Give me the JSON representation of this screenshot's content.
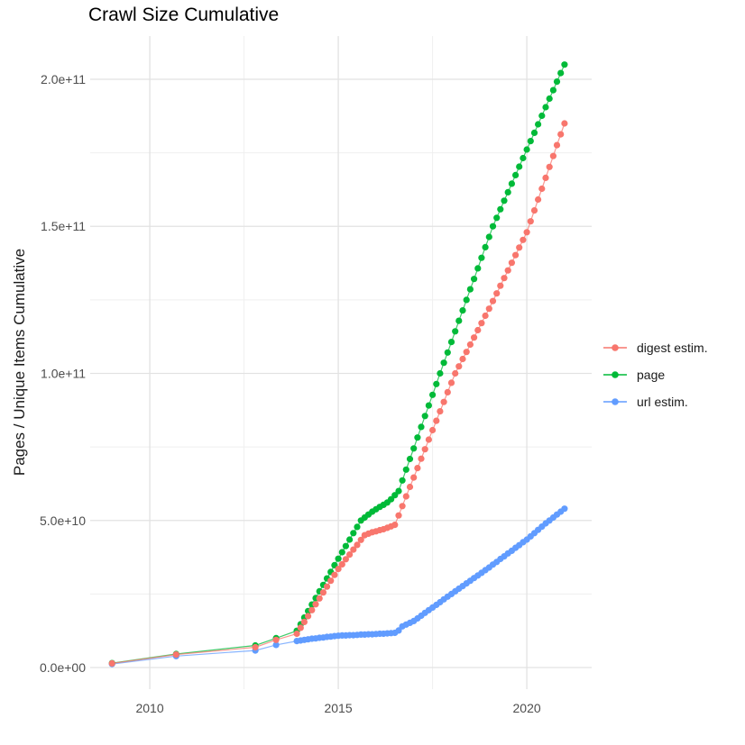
{
  "chart_data": {
    "type": "scatter",
    "title": "Crawl Size Cumulative",
    "xlabel": "",
    "ylabel": "Pages / Unique Items Cumulative",
    "value_unit": "1e9 (all series values stored in billions of items)",
    "xlim": [
      2008.42,
      2021.72
    ],
    "ylim_e9": [
      -7.35,
      214.7
    ],
    "grid": true,
    "legend_position": "right",
    "x_ticks": [
      {
        "value": 2010,
        "label": "2010"
      },
      {
        "value": 2015,
        "label": "2015"
      },
      {
        "value": 2020,
        "label": "2020"
      }
    ],
    "x_minor": [
      2012.5,
      2017.5
    ],
    "y_ticks": [
      {
        "value_e9": 0,
        "label": "0.0e+00"
      },
      {
        "value_e9": 50,
        "label": "5.0e+10"
      },
      {
        "value_e9": 100,
        "label": "1.0e+11"
      },
      {
        "value_e9": 150,
        "label": "1.5e+11"
      },
      {
        "value_e9": 200,
        "label": "2.0e+11"
      }
    ],
    "y_minor_e9": [
      25,
      75,
      125,
      175
    ],
    "z_order": [
      "page",
      "url estim.",
      "digest estim."
    ],
    "series": [
      {
        "name": "digest estim.",
        "color": "#F8766D",
        "points": [
          [
            2009.0,
            1.4
          ],
          [
            2010.7,
            4.4
          ],
          [
            2012.8,
            6.9
          ],
          [
            2013.35,
            9.4
          ],
          [
            2013.9,
            11.5
          ],
          [
            2014.0,
            13.5
          ],
          [
            2014.1,
            15.5
          ],
          [
            2014.2,
            17.5
          ],
          [
            2014.3,
            19.5
          ],
          [
            2014.4,
            21.5
          ],
          [
            2014.5,
            23.5
          ],
          [
            2014.6,
            25.5
          ],
          [
            2014.7,
            27.5
          ],
          [
            2014.8,
            29.5
          ],
          [
            2014.9,
            31.5
          ],
          [
            2015.0,
            33.5
          ],
          [
            2015.1,
            35.1
          ],
          [
            2015.2,
            36.8
          ],
          [
            2015.3,
            38.4
          ],
          [
            2015.4,
            40.1
          ],
          [
            2015.5,
            41.7
          ],
          [
            2015.6,
            43.4
          ],
          [
            2015.7,
            45.0
          ],
          [
            2015.8,
            45.5
          ],
          [
            2015.9,
            46.0
          ],
          [
            2016.0,
            46.3
          ],
          [
            2016.1,
            46.7
          ],
          [
            2016.2,
            47.0
          ],
          [
            2016.3,
            47.5
          ],
          [
            2016.4,
            48.0
          ],
          [
            2016.5,
            48.5
          ],
          [
            2016.6,
            51.7
          ],
          [
            2016.7,
            54.9
          ],
          [
            2016.8,
            58.2
          ],
          [
            2016.9,
            61.4
          ],
          [
            2017.0,
            64.6
          ],
          [
            2017.1,
            67.8
          ],
          [
            2017.2,
            71.0
          ],
          [
            2017.3,
            74.2
          ],
          [
            2017.4,
            77.5
          ],
          [
            2017.5,
            80.7
          ],
          [
            2017.6,
            83.9
          ],
          [
            2017.7,
            87.1
          ],
          [
            2017.8,
            90.3
          ],
          [
            2017.9,
            93.6
          ],
          [
            2018.0,
            96.8
          ],
          [
            2018.1,
            100.0
          ],
          [
            2018.2,
            102.4
          ],
          [
            2018.3,
            104.9
          ],
          [
            2018.4,
            107.3
          ],
          [
            2018.5,
            109.8
          ],
          [
            2018.6,
            112.2
          ],
          [
            2018.7,
            114.7
          ],
          [
            2018.8,
            117.1
          ],
          [
            2018.9,
            119.6
          ],
          [
            2019.0,
            122.0
          ],
          [
            2019.1,
            124.6
          ],
          [
            2019.2,
            127.2
          ],
          [
            2019.3,
            129.8
          ],
          [
            2019.4,
            132.4
          ],
          [
            2019.5,
            135.0
          ],
          [
            2019.6,
            137.6
          ],
          [
            2019.7,
            140.2
          ],
          [
            2019.8,
            142.8
          ],
          [
            2019.9,
            145.4
          ],
          [
            2020.0,
            148.0
          ],
          [
            2020.1,
            151.7
          ],
          [
            2020.2,
            155.4
          ],
          [
            2020.3,
            159.1
          ],
          [
            2020.4,
            162.8
          ],
          [
            2020.5,
            166.5
          ],
          [
            2020.6,
            170.2
          ],
          [
            2020.7,
            173.9
          ],
          [
            2020.8,
            177.6
          ],
          [
            2020.9,
            181.3
          ],
          [
            2021.0,
            185.0
          ]
        ]
      },
      {
        "name": "page",
        "color": "#00BA38",
        "points": [
          [
            2009.0,
            1.5
          ],
          [
            2010.7,
            4.6
          ],
          [
            2012.8,
            7.5
          ],
          [
            2013.35,
            10.0
          ],
          [
            2013.9,
            12.5
          ],
          [
            2014.0,
            14.7
          ],
          [
            2014.1,
            17.0
          ],
          [
            2014.2,
            19.2
          ],
          [
            2014.3,
            21.4
          ],
          [
            2014.4,
            23.6
          ],
          [
            2014.5,
            25.9
          ],
          [
            2014.6,
            28.1
          ],
          [
            2014.7,
            30.3
          ],
          [
            2014.8,
            32.5
          ],
          [
            2014.9,
            34.8
          ],
          [
            2015.0,
            37.0
          ],
          [
            2015.1,
            39.2
          ],
          [
            2015.2,
            41.3
          ],
          [
            2015.3,
            43.5
          ],
          [
            2015.4,
            45.7
          ],
          [
            2015.5,
            47.8
          ],
          [
            2015.6,
            50.0
          ],
          [
            2015.7,
            51.0
          ],
          [
            2015.8,
            52.0
          ],
          [
            2015.9,
            53.0
          ],
          [
            2016.0,
            53.8
          ],
          [
            2016.1,
            54.6
          ],
          [
            2016.2,
            55.3
          ],
          [
            2016.3,
            56.1
          ],
          [
            2016.4,
            57.2
          ],
          [
            2016.5,
            58.6
          ],
          [
            2016.6,
            60.0
          ],
          [
            2016.7,
            63.6
          ],
          [
            2016.8,
            67.3
          ],
          [
            2016.9,
            70.9
          ],
          [
            2017.0,
            74.5
          ],
          [
            2017.1,
            78.2
          ],
          [
            2017.2,
            81.8
          ],
          [
            2017.3,
            85.5
          ],
          [
            2017.4,
            89.1
          ],
          [
            2017.5,
            92.7
          ],
          [
            2017.6,
            96.4
          ],
          [
            2017.7,
            100.0
          ],
          [
            2017.8,
            103.6
          ],
          [
            2017.9,
            107.1
          ],
          [
            2018.0,
            110.7
          ],
          [
            2018.1,
            114.3
          ],
          [
            2018.2,
            117.9
          ],
          [
            2018.3,
            121.4
          ],
          [
            2018.4,
            125.0
          ],
          [
            2018.5,
            128.6
          ],
          [
            2018.6,
            132.1
          ],
          [
            2018.7,
            135.7
          ],
          [
            2018.8,
            139.3
          ],
          [
            2018.9,
            142.9
          ],
          [
            2019.0,
            146.4
          ],
          [
            2019.1,
            150.0
          ],
          [
            2019.2,
            152.9
          ],
          [
            2019.3,
            155.8
          ],
          [
            2019.4,
            158.7
          ],
          [
            2019.5,
            161.6
          ],
          [
            2019.6,
            164.5
          ],
          [
            2019.7,
            167.4
          ],
          [
            2019.8,
            170.3
          ],
          [
            2019.9,
            173.2
          ],
          [
            2020.0,
            176.1
          ],
          [
            2020.1,
            179.0
          ],
          [
            2020.2,
            181.8
          ],
          [
            2020.3,
            184.7
          ],
          [
            2020.4,
            187.6
          ],
          [
            2020.5,
            190.5
          ],
          [
            2020.6,
            193.4
          ],
          [
            2020.7,
            196.3
          ],
          [
            2020.8,
            199.2
          ],
          [
            2020.9,
            202.1
          ],
          [
            2021.0,
            205.0
          ]
        ]
      },
      {
        "name": "url estim.",
        "color": "#619CFF",
        "points": [
          [
            2009.0,
            1.2
          ],
          [
            2010.7,
            3.9
          ],
          [
            2012.8,
            5.8
          ],
          [
            2013.35,
            7.7
          ],
          [
            2013.9,
            9.0
          ],
          [
            2014.0,
            9.2
          ],
          [
            2014.1,
            9.4
          ],
          [
            2014.2,
            9.6
          ],
          [
            2014.3,
            9.8
          ],
          [
            2014.4,
            9.9
          ],
          [
            2014.5,
            10.1
          ],
          [
            2014.6,
            10.2
          ],
          [
            2014.7,
            10.4
          ],
          [
            2014.8,
            10.5
          ],
          [
            2014.9,
            10.7
          ],
          [
            2015.0,
            10.8
          ],
          [
            2015.1,
            10.9
          ],
          [
            2015.2,
            10.9
          ],
          [
            2015.3,
            11.0
          ],
          [
            2015.4,
            11.0
          ],
          [
            2015.5,
            11.1
          ],
          [
            2015.6,
            11.2
          ],
          [
            2015.7,
            11.2
          ],
          [
            2015.8,
            11.3
          ],
          [
            2015.9,
            11.3
          ],
          [
            2016.0,
            11.4
          ],
          [
            2016.1,
            11.5
          ],
          [
            2016.2,
            11.5
          ],
          [
            2016.3,
            11.6
          ],
          [
            2016.4,
            11.7
          ],
          [
            2016.5,
            11.8
          ],
          [
            2016.6,
            12.6
          ],
          [
            2016.7,
            14.0
          ],
          [
            2016.8,
            14.6
          ],
          [
            2016.9,
            15.2
          ],
          [
            2017.0,
            15.8
          ],
          [
            2017.1,
            16.7
          ],
          [
            2017.2,
            17.6
          ],
          [
            2017.3,
            18.6
          ],
          [
            2017.4,
            19.5
          ],
          [
            2017.5,
            20.4
          ],
          [
            2017.6,
            21.3
          ],
          [
            2017.7,
            22.2
          ],
          [
            2017.8,
            23.2
          ],
          [
            2017.9,
            24.1
          ],
          [
            2018.0,
            25.0
          ],
          [
            2018.1,
            25.9
          ],
          [
            2018.2,
            26.8
          ],
          [
            2018.3,
            27.7
          ],
          [
            2018.4,
            28.6
          ],
          [
            2018.5,
            29.5
          ],
          [
            2018.6,
            30.4
          ],
          [
            2018.7,
            31.3
          ],
          [
            2018.8,
            32.2
          ],
          [
            2018.9,
            33.1
          ],
          [
            2019.0,
            34.0
          ],
          [
            2019.1,
            35.0
          ],
          [
            2019.2,
            35.9
          ],
          [
            2019.3,
            36.9
          ],
          [
            2019.4,
            37.8
          ],
          [
            2019.5,
            38.8
          ],
          [
            2019.6,
            39.7
          ],
          [
            2019.7,
            40.7
          ],
          [
            2019.8,
            41.6
          ],
          [
            2019.9,
            42.6
          ],
          [
            2020.0,
            43.5
          ],
          [
            2020.1,
            44.6
          ],
          [
            2020.2,
            45.7
          ],
          [
            2020.3,
            46.8
          ],
          [
            2020.4,
            47.9
          ],
          [
            2020.5,
            49.0
          ],
          [
            2020.6,
            50.0
          ],
          [
            2020.7,
            51.0
          ],
          [
            2020.8,
            52.0
          ],
          [
            2020.9,
            53.0
          ],
          [
            2021.0,
            54.0
          ]
        ]
      }
    ]
  }
}
